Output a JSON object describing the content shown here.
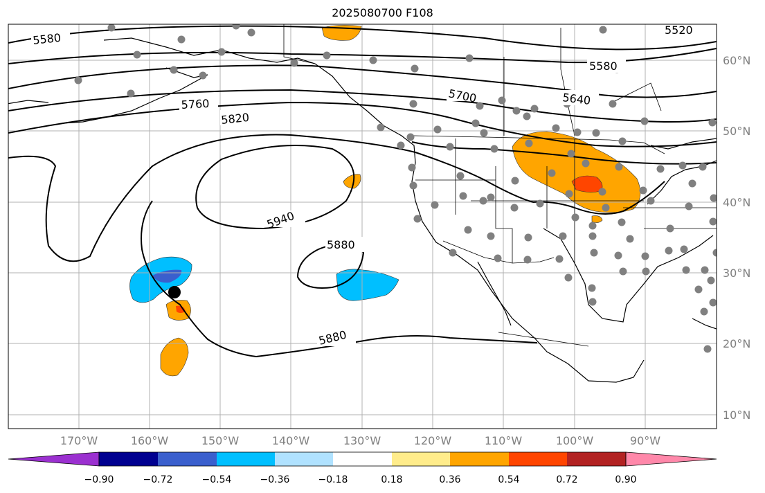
{
  "title": "2025080700 F108",
  "longitude_labels": [
    "170°W",
    "160°W",
    "150°W",
    "140°W",
    "130°W",
    "120°W",
    "110°W",
    "100°W",
    "90°W"
  ],
  "latitude_labels": [
    "60°N",
    "50°N",
    "40°N",
    "30°N",
    "20°N",
    "10°N"
  ],
  "contour_labels": [
    "5580",
    "5580",
    "5520",
    "5640",
    "5700",
    "5760",
    "5820",
    "5940",
    "5880",
    "5880"
  ],
  "colorbar": {
    "colors": [
      "#9b30d0",
      "#000090",
      "#3a5fcd",
      "#00bfff",
      "#b0e2ff",
      "#ffffff",
      "#ffec8b",
      "#ffa500",
      "#ff4500",
      "#b22222",
      "#ff88aa"
    ],
    "tick_labels": [
      "−0.90",
      "−0.72",
      "−0.54",
      "−0.36",
      "−0.18",
      "0.18",
      "0.36",
      "0.54",
      "0.72",
      "0.90"
    ]
  },
  "map_layers": {
    "station_marker_color": "#808080",
    "highlight_marker_color": "#000000",
    "positive_anomaly_colors": [
      "#ffa500",
      "#ff4500"
    ],
    "negative_anomaly_colors": [
      "#00bfff",
      "#3a5fcd"
    ]
  }
}
